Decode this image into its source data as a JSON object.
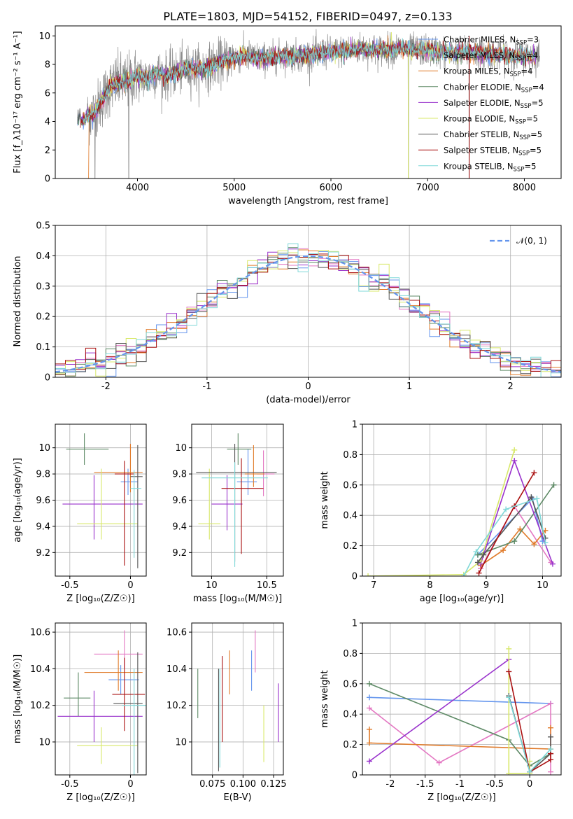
{
  "figure": {
    "title": "PLATE=1803, MJD=54152, FIBERID=0497, z=0.133"
  },
  "colors": {
    "Chabrier MILES": "#6495ED",
    "Salpeter MILES": "#E377C2",
    "Kroupa MILES": "#E07B2A",
    "Chabrier ELODIE": "#5E8A66",
    "Salpeter ELODIE": "#9932CC",
    "Kroupa ELODIE": "#D8E86A",
    "Chabrier STELIB": "#555555",
    "Salpeter STELIB": "#AA1111",
    "Kroupa STELIB": "#7FD8D8",
    "data": "#888888",
    "normal": "#6495ED"
  },
  "chart_data": [
    {
      "id": "spectrum",
      "type": "line",
      "xlabel": "wavelength [Angstrom, rest frame]",
      "ylabel": "Flux [f_λ10⁻¹⁷ erg cm⁻² s⁻¹ A⁻¹]",
      "xlim": [
        3150,
        8380
      ],
      "ylim": [
        0,
        10.7
      ],
      "xticks": [
        4000,
        5000,
        6000,
        7000,
        8000
      ],
      "yticks": [
        0,
        2,
        4,
        6,
        8,
        10
      ],
      "legend_loc": "upper right",
      "legend": [
        {
          "label": "Chabrier MILES, N",
          "sub": "SSP",
          "suffix": "=3",
          "color_key": "Chabrier MILES"
        },
        {
          "label": "Salpeter MILES, N",
          "sub": "SSP",
          "suffix": "=4",
          "color_key": "Salpeter MILES"
        },
        {
          "label": "Kroupa MILES, N",
          "sub": "SSP",
          "suffix": "=4",
          "color_key": "Kroupa MILES"
        },
        {
          "label": "Chabrier ELODIE, N",
          "sub": "SSP",
          "suffix": "=4",
          "color_key": "Chabrier ELODIE"
        },
        {
          "label": "Salpeter ELODIE, N",
          "sub": "SSP",
          "suffix": "=5",
          "color_key": "Salpeter ELODIE"
        },
        {
          "label": "Kroupa ELODIE, N",
          "sub": "SSP",
          "suffix": "=5",
          "color_key": "Kroupa ELODIE"
        },
        {
          "label": "Chabrier STELIB, N",
          "sub": "SSP",
          "suffix": "=5",
          "color_key": "Chabrier STELIB"
        },
        {
          "label": "Salpeter STELIB, N",
          "sub": "SSP",
          "suffix": "=5",
          "color_key": "Salpeter STELIB"
        },
        {
          "label": "Kroupa STELIB, N",
          "sub": "SSP",
          "suffix": "=5",
          "color_key": "Kroupa STELIB"
        }
      ],
      "continuum": {
        "x": [
          3380,
          3480,
          3560,
          3640,
          3700,
          3760,
          3820,
          3880,
          3940,
          4000,
          4100,
          4200,
          4300,
          4400,
          4500,
          4700,
          4900,
          5100,
          5300,
          5500,
          5700,
          5900,
          6100,
          6300,
          6500,
          6700,
          6900,
          7100,
          7300,
          7500,
          7700,
          7900,
          8100
        ],
        "y": [
          4.1,
          4.3,
          4.6,
          5.6,
          6.3,
          6.6,
          6.8,
          6.7,
          7.0,
          7.2,
          7.0,
          7.4,
          7.2,
          7.4,
          7.7,
          7.7,
          8.3,
          8.6,
          8.4,
          8.6,
          8.6,
          8.8,
          8.9,
          9.1,
          9.0,
          9.1,
          9.0,
          8.9,
          8.8,
          8.8,
          8.7,
          8.6,
          8.6
        ]
      },
      "data_range": [
        3480,
        8160
      ],
      "model_range": [
        3380,
        8120
      ],
      "spikes": [
        {
          "x": 3560,
          "y": 0.0
        },
        {
          "x": 3910,
          "y": 0.0
        },
        {
          "x": 6800,
          "y": 0.0
        },
        {
          "x": 7430,
          "y": 0.0
        }
      ]
    },
    {
      "id": "residuals",
      "type": "histogram",
      "xlabel": "(data-model)/error",
      "ylabel": "Normed distribution",
      "xlim": [
        -2.5,
        2.5
      ],
      "ylim": [
        0,
        0.5
      ],
      "xticks": [
        -2,
        -1,
        0,
        1,
        2
      ],
      "yticks": [
        0.0,
        0.1,
        0.2,
        0.3,
        0.4,
        0.5
      ],
      "bin_width": 0.1,
      "legend_label": "𝒩(0, 1)",
      "legend_loc": "upper right",
      "curve": "standard normal pdf"
    },
    {
      "id": "age_vs_Z",
      "type": "scatter",
      "xlabel": "Z [log₁₀(Z/Z☉)]",
      "ylabel": "age  [log₁₀(age/yr)]",
      "xlim": [
        -0.62,
        0.13
      ],
      "ylim": [
        9.02,
        10.18
      ],
      "xticks": [
        -0.5,
        0.0
      ],
      "yticks": [
        9.2,
        9.4,
        9.6,
        9.8,
        10.0
      ],
      "points": [
        {
          "key": "Chabrier MILES",
          "x": -0.02,
          "xe": [
            0.06,
            0.08
          ],
          "y": 9.74,
          "ye": [
            0.1,
            0.1
          ]
        },
        {
          "key": "Salpeter MILES",
          "x": 0.0,
          "xe": [
            0.02,
            0.02
          ],
          "y": 9.8,
          "ye": [
            0.1,
            0.23
          ]
        },
        {
          "key": "Kroupa MILES",
          "x": 0.0,
          "xe": [
            0.3,
            0.1
          ],
          "y": 9.81,
          "ye": [
            0.15,
            0.22
          ]
        },
        {
          "key": "Chabrier ELODIE",
          "x": -0.38,
          "xe": [
            0.15,
            0.2
          ],
          "y": 9.99,
          "ye": [
            0.12,
            0.12
          ]
        },
        {
          "key": "Salpeter ELODIE",
          "x": -0.3,
          "xe": [
            0.26,
            0.4
          ],
          "y": 9.57,
          "ye": [
            0.27,
            0.22
          ]
        },
        {
          "key": "Kroupa ELODIE",
          "x": -0.24,
          "xe": [
            0.2,
            0.3
          ],
          "y": 9.42,
          "ye": [
            0.12,
            0.42
          ]
        },
        {
          "key": "Chabrier STELIB",
          "x": 0.06,
          "xe": [
            0.06,
            0.04
          ],
          "y": 9.78,
          "ye": [
            0.7,
            0.24
          ]
        },
        {
          "key": "Salpeter STELIB",
          "x": -0.05,
          "xe": [
            0.08,
            0.08
          ],
          "y": 9.8,
          "ye": [
            0.7,
            0.1
          ]
        },
        {
          "key": "Kroupa STELIB",
          "x": 0.03,
          "xe": [
            0.03,
            0.06
          ],
          "y": 9.69,
          "ye": [
            0.53,
            0.14
          ]
        }
      ]
    },
    {
      "id": "age_vs_mass",
      "type": "scatter",
      "xlabel": "mass [log₁₀(M/M☉)]",
      "ylabel": "",
      "xlim": [
        9.82,
        10.65
      ],
      "ylim": [
        9.02,
        10.18
      ],
      "xticks": [
        10.0,
        10.5
      ],
      "yticks": [
        9.2,
        9.4,
        9.6,
        9.8,
        10.0
      ],
      "points": [
        {
          "key": "Chabrier MILES",
          "x": 10.33,
          "xe": [
            0.1,
            0.08
          ],
          "y": 9.74,
          "ye": [
            0.1,
            0.25
          ]
        },
        {
          "key": "Salpeter MILES",
          "x": 10.47,
          "xe": [
            0.06,
            0.1
          ],
          "y": 9.8,
          "ye": [
            0.17,
            0.18
          ]
        },
        {
          "key": "Kroupa MILES",
          "x": 10.38,
          "xe": [
            0.08,
            0.1
          ],
          "y": 9.8,
          "ye": [
            0.1,
            0.22
          ]
        },
        {
          "key": "Chabrier ELODIE",
          "x": 10.24,
          "xe": [
            0.1,
            0.12
          ],
          "y": 9.99,
          "ye": [
            0.12,
            0.12
          ]
        },
        {
          "key": "Salpeter ELODIE",
          "x": 10.14,
          "xe": [
            0.14,
            0.14
          ],
          "y": 9.57,
          "ye": [
            0.2,
            0.22
          ]
        },
        {
          "key": "Kroupa ELODIE",
          "x": 9.98,
          "xe": [
            0.1,
            0.1
          ],
          "y": 9.42,
          "ye": [
            0.12,
            0.42
          ]
        },
        {
          "key": "Chabrier STELIB",
          "x": 10.21,
          "xe": [
            0.35,
            0.38
          ],
          "y": 9.81,
          "ye": [
            0.68,
            0.22
          ]
        },
        {
          "key": "Salpeter STELIB",
          "x": 10.27,
          "xe": [
            0.18,
            0.2
          ],
          "y": 9.69,
          "ye": [
            0.5,
            0.23
          ]
        },
        {
          "key": "Kroupa STELIB",
          "x": 10.21,
          "xe": [
            0.3,
            0.3
          ],
          "y": 9.77,
          "ye": [
            0.68,
            0.12
          ]
        }
      ]
    },
    {
      "id": "weight_vs_age",
      "type": "line",
      "xlabel": "age  [log₁₀(age/yr)]",
      "ylabel": "mass weight",
      "xlim": [
        6.8,
        10.33
      ],
      "ylim": [
        0,
        1.0
      ],
      "xticks": [
        7,
        8,
        9,
        10
      ],
      "yticks": [
        0.0,
        0.2,
        0.4,
        0.6,
        0.8,
        1.0
      ],
      "series": [
        {
          "key": "Chabrier MILES",
          "x": [
            8.85,
            9.82,
            10.0
          ],
          "y": [
            0.14,
            0.51,
            0.23
          ]
        },
        {
          "key": "Salpeter MILES",
          "x": [
            8.9,
            9.5,
            10.15
          ],
          "y": [
            0.05,
            0.46,
            0.09
          ]
        },
        {
          "key": "Kroupa MILES",
          "x": [
            8.9,
            9.3,
            9.6,
            9.85,
            10.05
          ],
          "y": [
            0.07,
            0.17,
            0.31,
            0.21,
            0.3
          ]
        },
        {
          "key": "Chabrier ELODIE",
          "x": [
            8.85,
            9.5,
            10.2
          ],
          "y": [
            0.14,
            0.23,
            0.6
          ]
        },
        {
          "key": "Salpeter ELODIE",
          "x": [
            8.9,
            9.5,
            10.18
          ],
          "y": [
            0.08,
            0.76,
            0.08
          ]
        },
        {
          "key": "Kroupa ELODIE",
          "x": [
            6.9,
            8.6,
            8.9,
            9.5
          ],
          "y": [
            0.0,
            0.01,
            0.1,
            0.83
          ]
        },
        {
          "key": "Chabrier STELIB",
          "x": [
            8.85,
            8.95,
            9.8,
            10.05
          ],
          "y": [
            0.09,
            0.14,
            0.52,
            0.25
          ]
        },
        {
          "key": "Salpeter STELIB",
          "x": [
            8.87,
            9.5,
            9.85
          ],
          "y": [
            0.02,
            0.46,
            0.68
          ]
        },
        {
          "key": "Kroupa STELIB",
          "x": [
            8.6,
            8.82,
            9.35,
            9.9,
            10.05
          ],
          "y": [
            0.0,
            0.16,
            0.44,
            0.51,
            0.22
          ]
        }
      ]
    },
    {
      "id": "mass_vs_Z",
      "type": "scatter",
      "xlabel": "Z [log₁₀(Z/Z☉)]",
      "ylabel": "mass [log₁₀(M/M☉)]",
      "xlim": [
        -0.62,
        0.13
      ],
      "ylim": [
        9.82,
        10.65
      ],
      "xticks": [
        -0.5,
        0.0
      ],
      "yticks": [
        10.0,
        10.2,
        10.4,
        10.6
      ],
      "points": [
        {
          "key": "Chabrier MILES",
          "x": -0.08,
          "xe": [
            0.1,
            0.15
          ],
          "y": 10.34,
          "ye": [
            0.08,
            0.08
          ]
        },
        {
          "key": "Salpeter MILES",
          "x": -0.05,
          "xe": [
            0.25,
            0.15
          ],
          "y": 10.48,
          "ye": [
            0.08,
            0.13
          ]
        },
        {
          "key": "Kroupa MILES",
          "x": -0.1,
          "xe": [
            0.28,
            0.2
          ],
          "y": 10.38,
          "ye": [
            0.1,
            0.12
          ]
        },
        {
          "key": "Chabrier ELODIE",
          "x": -0.43,
          "xe": [
            0.12,
            0.1
          ],
          "y": 10.24,
          "ye": [
            0.1,
            0.14
          ]
        },
        {
          "key": "Salpeter ELODIE",
          "x": -0.3,
          "xe": [
            0.3,
            0.4
          ],
          "y": 10.14,
          "ye": [
            0.14,
            0.14
          ]
        },
        {
          "key": "Kroupa ELODIE",
          "x": -0.24,
          "xe": [
            0.2,
            0.3
          ],
          "y": 9.98,
          "ye": [
            0.1,
            0.1
          ]
        },
        {
          "key": "Chabrier STELIB",
          "x": 0.06,
          "xe": [
            0.2,
            0.04
          ],
          "y": 10.21,
          "ye": [
            0.38,
            0.28
          ]
        },
        {
          "key": "Salpeter STELIB",
          "x": -0.05,
          "xe": [
            0.1,
            0.17
          ],
          "y": 10.26,
          "ye": [
            0.2,
            0.2
          ]
        },
        {
          "key": "Kroupa STELIB",
          "x": 0.03,
          "xe": [
            0.1,
            0.1
          ],
          "y": 10.2,
          "ye": [
            0.38,
            0.2
          ]
        }
      ]
    },
    {
      "id": "mass_vs_ebv",
      "type": "scatter",
      "xlabel": "E(B-V)",
      "ylabel": "",
      "xlim": [
        0.058,
        0.133
      ],
      "ylim": [
        9.82,
        10.65
      ],
      "xticks": [
        0.075,
        0.1,
        0.125
      ],
      "xtick_labels": [
        "0.075",
        "0.100",
        "0.125"
      ],
      "yticks": [
        10.0,
        10.2,
        10.4,
        10.6
      ],
      "points": [
        {
          "key": "Chabrier MILES",
          "x": 0.107,
          "y": 10.38,
          "ye": [
            0.1,
            0.12
          ]
        },
        {
          "key": "Salpeter MILES",
          "x": 0.11,
          "y": 10.48,
          "ye": [
            0.1,
            0.13
          ]
        },
        {
          "key": "Kroupa MILES",
          "x": 0.089,
          "y": 10.38,
          "ye": [
            0.12,
            0.12
          ]
        },
        {
          "key": "Chabrier ELODIE",
          "x": 0.063,
          "y": 10.26,
          "ye": [
            0.13,
            0.14
          ]
        },
        {
          "key": "Salpeter ELODIE",
          "x": 0.129,
          "y": 10.16,
          "ye": [
            0.16,
            0.16
          ]
        },
        {
          "key": "Kroupa ELODIE",
          "x": 0.117,
          "y": 10.05,
          "ye": [
            0.16,
            0.15
          ]
        },
        {
          "key": "Chabrier STELIB",
          "x": 0.08,
          "y": 10.21,
          "ye": [
            0.37,
            0.19
          ]
        },
        {
          "key": "Salpeter STELIB",
          "x": 0.083,
          "y": 10.23,
          "ye": [
            0.23,
            0.24
          ]
        },
        {
          "key": "Kroupa STELIB",
          "x": 0.081,
          "y": 10.2,
          "ye": [
            0.34,
            0.2
          ]
        }
      ]
    },
    {
      "id": "weight_vs_Z",
      "type": "line",
      "xlabel": "Z [log₁₀(Z/Z☉)]",
      "ylabel": "mass weight",
      "xlim": [
        -2.4,
        0.45
      ],
      "ylim": [
        0,
        1.0
      ],
      "xticks": [
        -2.0,
        -1.5,
        -1.0,
        -0.5,
        0.0
      ],
      "yticks": [
        0.0,
        0.2,
        0.4,
        0.6,
        0.8,
        1.0
      ],
      "series": [
        {
          "key": "Chabrier MILES",
          "x": [
            -2.3,
            0.3
          ],
          "y": [
            0.51,
            0.47
          ]
        },
        {
          "key": "Salpeter MILES",
          "x": [
            -2.3,
            -1.3,
            0.3,
            0.3
          ],
          "y": [
            0.44,
            0.08,
            0.47,
            0.02
          ]
        },
        {
          "key": "Kroupa MILES",
          "x": [
            -2.3,
            -2.3,
            0.3,
            0.3
          ],
          "y": [
            0.3,
            0.21,
            0.17,
            0.31
          ]
        },
        {
          "key": "Chabrier ELODIE",
          "x": [
            -2.3,
            -0.3,
            0.0,
            0.3
          ],
          "y": [
            0.6,
            0.23,
            0.06,
            0.14
          ]
        },
        {
          "key": "Salpeter ELODIE",
          "x": [
            -2.3,
            -0.3
          ],
          "y": [
            0.09,
            0.76
          ]
        },
        {
          "key": "Kroupa ELODIE",
          "x": [
            -0.3,
            -0.3,
            0.0,
            0.0
          ],
          "y": [
            0.83,
            0.01,
            0.01,
            0.09
          ]
        },
        {
          "key": "Chabrier STELIB",
          "x": [
            -0.3,
            0.0,
            0.3,
            0.3
          ],
          "y": [
            0.52,
            0.02,
            0.14,
            0.25
          ]
        },
        {
          "key": "Salpeter STELIB",
          "x": [
            -0.3,
            0.0,
            0.3,
            0.3
          ],
          "y": [
            0.68,
            0.02,
            0.1,
            0.14
          ]
        },
        {
          "key": "Kroupa STELIB",
          "x": [
            -0.3,
            0.0,
            0.3
          ],
          "y": [
            0.51,
            0.02,
            0.17
          ]
        }
      ]
    }
  ]
}
